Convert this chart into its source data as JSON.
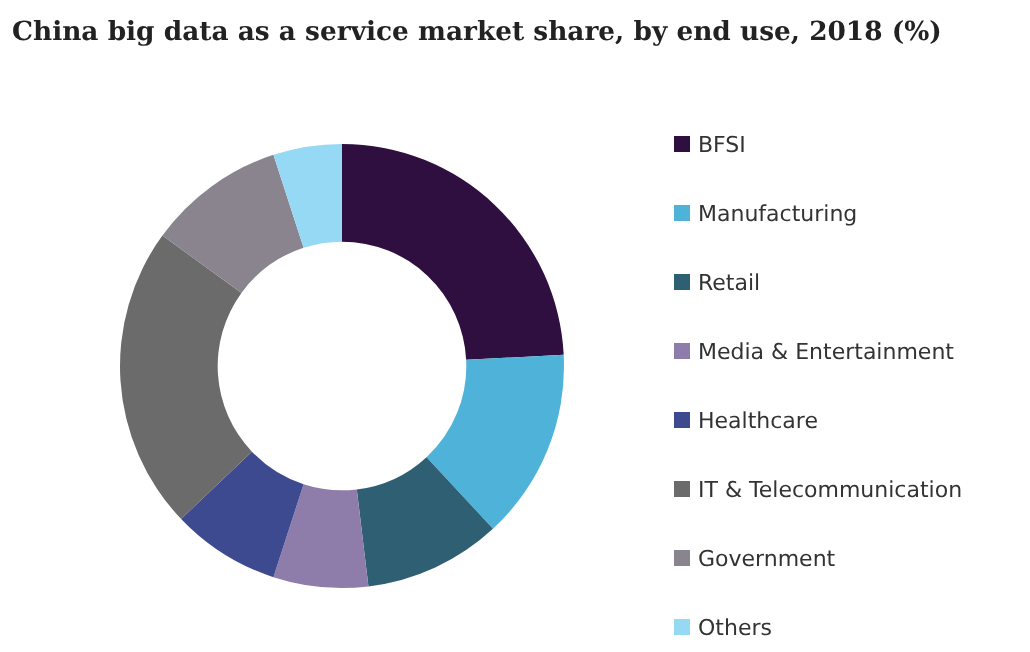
{
  "chart_data": {
    "type": "donut",
    "title": "China big data as a service market share, by end use, 2018 (%)",
    "categories": [
      "BFSI",
      "Manufacturing",
      "Retail",
      "Media & Entertainment",
      "Healthcare",
      "IT & Telecommunication",
      "Government",
      "Others"
    ],
    "values": [
      24.2,
      13.9,
      10,
      6.9,
      7.9,
      22.1,
      10,
      5
    ],
    "colors": [
      "#2e0f3f",
      "#4fb3d9",
      "#2f5f73",
      "#8e7dab",
      "#3d4a8f",
      "#6b6b6b",
      "#8a848f",
      "#96d9f5"
    ],
    "legend": "right"
  }
}
